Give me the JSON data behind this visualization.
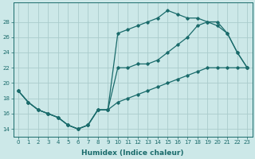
{
  "xlabel": "Humidex (Indice chaleur)",
  "ylabel": "",
  "bg_color": "#cce8e8",
  "grid_color": "#aacccc",
  "line_color": "#1a6b6b",
  "marker": "D",
  "markersize": 1.8,
  "linewidth": 0.9,
  "xlim": [
    -0.5,
    23.5
  ],
  "ylim": [
    13.0,
    30.5
  ],
  "xticks": [
    0,
    1,
    2,
    3,
    4,
    5,
    6,
    7,
    8,
    9,
    10,
    11,
    12,
    13,
    14,
    15,
    16,
    17,
    18,
    19,
    20,
    21,
    22,
    23
  ],
  "ytick_locs": [
    14,
    16,
    18,
    20,
    22,
    24,
    26,
    28
  ],
  "ytick_labels": [
    "14",
    "16",
    "18",
    "20",
    "22",
    "24",
    "26",
    "28"
  ],
  "line1_y": [
    19.0,
    17.5,
    16.5,
    16.0,
    15.5,
    14.5,
    14.0,
    14.5,
    16.5,
    16.5,
    26.5,
    27.0,
    27.5,
    28.0,
    28.5,
    29.5,
    29.0,
    28.5,
    28.5,
    28.0,
    28.0,
    26.5,
    24.0,
    22.0
  ],
  "line2_y": [
    19.0,
    17.5,
    16.5,
    16.0,
    15.5,
    14.5,
    14.0,
    14.5,
    16.5,
    16.5,
    22.0,
    22.0,
    22.5,
    22.5,
    23.0,
    24.0,
    25.0,
    26.0,
    27.5,
    28.0,
    27.5,
    26.5,
    24.0,
    22.0
  ],
  "line3_y": [
    19.0,
    17.5,
    16.5,
    16.0,
    15.5,
    14.5,
    14.0,
    14.5,
    16.5,
    16.5,
    17.5,
    18.0,
    18.5,
    19.0,
    19.5,
    20.0,
    20.5,
    21.0,
    21.5,
    22.0,
    22.0,
    22.0,
    22.0,
    22.0
  ]
}
